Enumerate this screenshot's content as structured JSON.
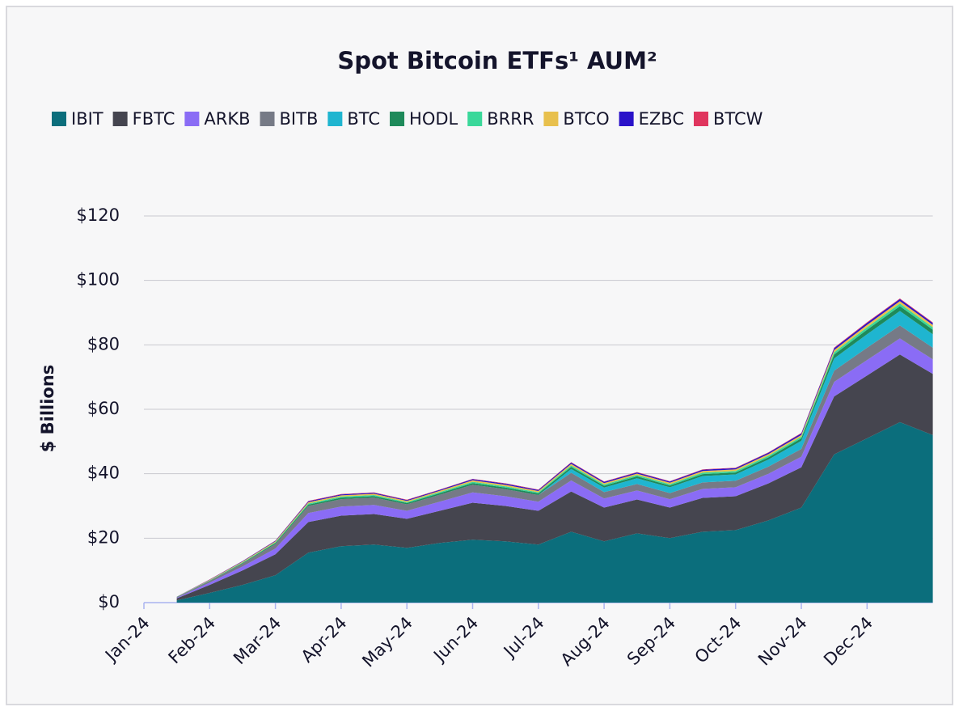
{
  "chart_data": {
    "type": "area",
    "stacked": true,
    "title": "Spot Bitcoin ETFs¹ AUM²",
    "y_label": "$ Billions",
    "x": [
      0.5,
      1,
      1.5,
      2,
      2.5,
      3,
      3.5,
      4,
      4.5,
      5,
      5.5,
      6,
      6.5,
      7,
      7.5,
      8,
      8.5,
      9,
      9.5,
      10,
      10.5,
      11,
      11.5,
      12
    ],
    "xlim": [
      0,
      12
    ],
    "xticks": [
      {
        "value": 0,
        "label": "Jan-24"
      },
      {
        "value": 1,
        "label": "Feb-24"
      },
      {
        "value": 2,
        "label": "Mar-24"
      },
      {
        "value": 3,
        "label": "Apr-24"
      },
      {
        "value": 4,
        "label": "May-24"
      },
      {
        "value": 5,
        "label": "Jun-24"
      },
      {
        "value": 6,
        "label": "Jul-24"
      },
      {
        "value": 7,
        "label": "Aug-24"
      },
      {
        "value": 8,
        "label": "Sep-24"
      },
      {
        "value": 9,
        "label": "Oct-24"
      },
      {
        "value": 10,
        "label": "Nov-24"
      },
      {
        "value": 11,
        "label": "Dec-24"
      }
    ],
    "ylim": [
      0,
      120
    ],
    "yticks": [
      {
        "value": 0,
        "label": "$0"
      },
      {
        "value": 20,
        "label": "$20"
      },
      {
        "value": 40,
        "label": "$40"
      },
      {
        "value": 60,
        "label": "$60"
      },
      {
        "value": 80,
        "label": "$80"
      },
      {
        "value": 100,
        "label": "$100"
      },
      {
        "value": 120,
        "label": "$120"
      }
    ],
    "grid": true,
    "legend": "top",
    "series": [
      {
        "name": "IBIT",
        "color": "#0b6e7c",
        "values": [
          0.7,
          3,
          5.5,
          8.5,
          15.5,
          17.5,
          18,
          17,
          18.5,
          19.5,
          19,
          18,
          22,
          19,
          21.5,
          20,
          22,
          22.5,
          25.5,
          29.5,
          46,
          51,
          56,
          52
        ]
      },
      {
        "name": "FBTC",
        "color": "#45454f",
        "values": [
          0.6,
          2.5,
          4.5,
          6.5,
          9.5,
          9.5,
          9.5,
          9,
          10,
          11.5,
          11,
          10.5,
          12.5,
          10.5,
          10.5,
          9.5,
          10.5,
          10.5,
          11.5,
          12.5,
          18,
          19.5,
          21,
          19
        ]
      },
      {
        "name": "ARKB",
        "color": "#8a6cf5",
        "values": [
          0.2,
          0.7,
          1.2,
          1.8,
          2.8,
          2.8,
          2.8,
          2.5,
          2.8,
          3.2,
          3,
          2.8,
          3.4,
          2.8,
          2.8,
          2.6,
          2.8,
          2.8,
          3,
          3.3,
          4.5,
          4.8,
          5,
          4.5
        ]
      },
      {
        "name": "BITB",
        "color": "#767a86",
        "values": [
          0.2,
          0.5,
          0.9,
          1.4,
          2.2,
          2.3,
          2.3,
          2,
          2.2,
          2.4,
          2.2,
          2.1,
          2.4,
          2,
          2,
          1.9,
          2,
          2,
          2.2,
          2.4,
          3.5,
          3.8,
          4,
          3.6
        ]
      },
      {
        "name": "BTC",
        "color": "#1fb5d0",
        "values": [
          0,
          0,
          0,
          0,
          0,
          0,
          0,
          0,
          0,
          0,
          0,
          0,
          1.2,
          1.4,
          1.8,
          1.8,
          2,
          2,
          2.2,
          2.5,
          3.8,
          4.2,
          4.5,
          4.2
        ]
      },
      {
        "name": "HODL",
        "color": "#1e8a5a",
        "values": [
          0.05,
          0.1,
          0.2,
          0.3,
          0.4,
          0.45,
          0.45,
          0.4,
          0.45,
          0.5,
          0.5,
          0.5,
          0.6,
          0.55,
          0.6,
          0.55,
          0.6,
          0.6,
          0.7,
          0.8,
          1.2,
          1.4,
          1.5,
          1.4
        ]
      },
      {
        "name": "BRRR",
        "color": "#3ad89a",
        "values": [
          0.02,
          0.1,
          0.15,
          0.2,
          0.35,
          0.35,
          0.35,
          0.3,
          0.35,
          0.4,
          0.4,
          0.35,
          0.45,
          0.4,
          0.4,
          0.4,
          0.45,
          0.45,
          0.5,
          0.5,
          0.7,
          0.75,
          0.8,
          0.75
        ]
      },
      {
        "name": "BTCO",
        "color": "#e8c04d",
        "values": [
          0.05,
          0.15,
          0.25,
          0.3,
          0.4,
          0.4,
          0.4,
          0.35,
          0.4,
          0.45,
          0.45,
          0.4,
          0.5,
          0.45,
          0.45,
          0.45,
          0.5,
          0.5,
          0.5,
          0.55,
          0.7,
          0.75,
          0.8,
          0.75
        ]
      },
      {
        "name": "EZBC",
        "color": "#2a12c9",
        "values": [
          0.03,
          0.1,
          0.15,
          0.2,
          0.3,
          0.3,
          0.3,
          0.28,
          0.3,
          0.35,
          0.35,
          0.33,
          0.4,
          0.35,
          0.35,
          0.35,
          0.4,
          0.4,
          0.4,
          0.45,
          0.55,
          0.6,
          0.6,
          0.55
        ]
      },
      {
        "name": "BTCW",
        "color": "#e0355e",
        "values": [
          0.02,
          0.05,
          0.06,
          0.08,
          0.1,
          0.1,
          0.1,
          0.1,
          0.1,
          0.12,
          0.12,
          0.11,
          0.13,
          0.12,
          0.12,
          0.12,
          0.13,
          0.13,
          0.14,
          0.15,
          0.18,
          0.2,
          0.2,
          0.2
        ]
      }
    ]
  }
}
